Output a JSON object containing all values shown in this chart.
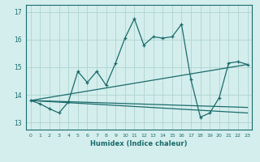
{
  "xlabel": "Humidex (Indice chaleur)",
  "bg_color": "#d4eeed",
  "grid_color": "#aed4d0",
  "line_color": "#1a6b6b",
  "xlim": [
    -0.5,
    23.5
  ],
  "ylim": [
    12.75,
    17.25
  ],
  "yticks": [
    13,
    14,
    15,
    16,
    17
  ],
  "xticks": [
    0,
    1,
    2,
    3,
    4,
    5,
    6,
    7,
    8,
    9,
    10,
    11,
    12,
    13,
    14,
    15,
    16,
    17,
    18,
    19,
    20,
    21,
    22,
    23
  ],
  "line1_x": [
    0,
    1,
    2,
    3,
    4,
    5,
    6,
    7,
    8,
    9,
    10,
    11,
    12,
    13,
    14,
    15,
    16,
    17,
    18,
    19,
    20,
    21,
    22,
    23
  ],
  "line1_y": [
    13.8,
    13.68,
    13.5,
    13.35,
    13.75,
    14.85,
    14.45,
    14.85,
    14.35,
    15.15,
    16.05,
    16.75,
    15.8,
    16.1,
    16.05,
    16.1,
    16.55,
    14.55,
    13.2,
    13.35,
    13.9,
    15.15,
    15.2,
    15.1
  ],
  "line2_x": [
    0,
    23
  ],
  "line2_y": [
    13.8,
    15.1
  ],
  "line3_x": [
    0,
    23
  ],
  "line3_y": [
    13.8,
    13.55
  ],
  "line4_x": [
    0,
    23
  ],
  "line4_y": [
    13.8,
    13.35
  ]
}
